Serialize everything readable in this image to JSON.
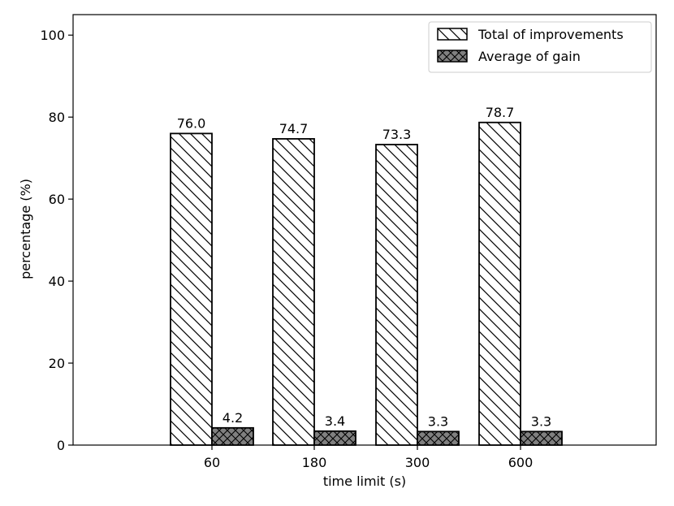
{
  "chart_data": {
    "type": "bar",
    "xlabel": "time limit (s)",
    "ylabel": "percentage (%)",
    "categories": [
      "60",
      "180",
      "300",
      "600"
    ],
    "ylim": [
      0,
      105
    ],
    "yticks": [
      0,
      20,
      40,
      60,
      80,
      100
    ],
    "grid": false,
    "legend_position": "top-right",
    "series": [
      {
        "name": "Total of improvements",
        "values": [
          76.0,
          74.7,
          73.3,
          78.7
        ],
        "labels": [
          "76.0",
          "74.7",
          "73.3",
          "78.7"
        ],
        "fill": "#ffffff",
        "hatch": "backslash"
      },
      {
        "name": "Average of gain",
        "values": [
          4.2,
          3.4,
          3.3,
          3.3
        ],
        "labels": [
          "4.2",
          "3.4",
          "3.3",
          "3.3"
        ],
        "fill": "#808080",
        "hatch": "crosshatch"
      }
    ]
  }
}
